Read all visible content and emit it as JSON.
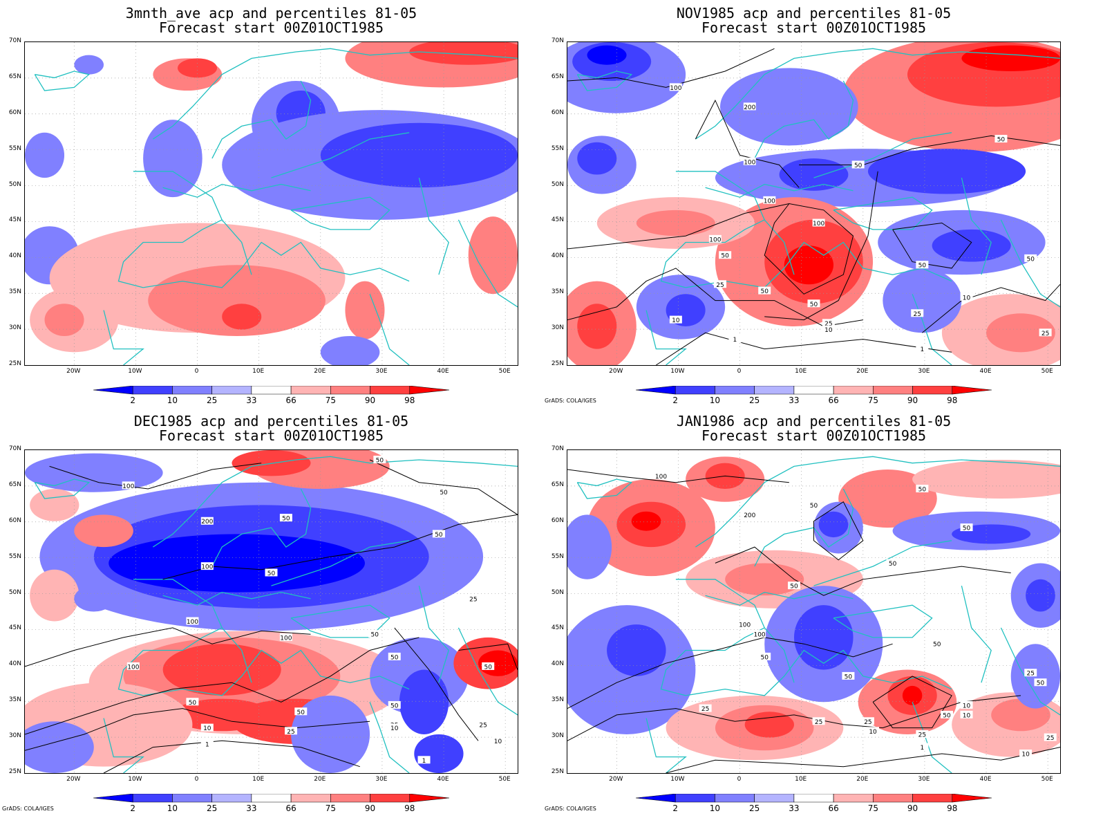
{
  "credit": "GrADS: COLA/IGES",
  "axes": {
    "lat_labels": [
      "70N",
      "65N",
      "60N",
      "55N",
      "50N",
      "45N",
      "40N",
      "35N",
      "30N",
      "25N"
    ],
    "lon_labels": [
      "20W",
      "10W",
      "0",
      "10E",
      "20E",
      "30E",
      "40E",
      "50E"
    ]
  },
  "colorbar": {
    "labels": [
      "2",
      "10",
      "25",
      "33",
      "66",
      "75",
      "90",
      "98"
    ],
    "colors": [
      "#0000ff",
      "#4040ff",
      "#8080ff",
      "#b4b4ff",
      "#ffffff",
      "#ffb4b4",
      "#ff8080",
      "#ff4040",
      "#ff0000"
    ]
  },
  "colors": {
    "coast": "#20c0c0",
    "contour": "#000000"
  },
  "panels": [
    {
      "title1": "3mnth_ave acp and percentiles 81-05",
      "title2": "Forecast start 00Z01OCT1985",
      "contour_labels": [],
      "show_credit": false
    },
    {
      "title1": "NOV1985 acp and percentiles 81-05",
      "title2": "Forecast start 00Z01OCT1985",
      "contour_labels": [
        "100",
        "200",
        "100",
        "50",
        "50",
        "50",
        "100",
        "100",
        "100",
        "50",
        "50",
        "25",
        "10",
        "50",
        "25",
        "10",
        "1",
        "10",
        "25",
        "25",
        "50",
        "1"
      ],
      "show_credit": true
    },
    {
      "title1": "DEC1985 acp and percentiles 81-05",
      "title2": "Forecast start 00Z01OCT1985",
      "contour_labels": [
        "100",
        "50",
        "200",
        "50",
        "50",
        "50",
        "100",
        "50",
        "25",
        "100",
        "100",
        "50",
        "50",
        "50",
        "100",
        "50",
        "25",
        "50",
        "10",
        "25",
        "1",
        "50",
        "25",
        "1",
        "10",
        "10"
      ],
      "show_credit": true
    },
    {
      "title1": "JAN1986 acp and percentiles 81-05",
      "title2": "Forecast start 00Z01OCT1985",
      "contour_labels": [
        "100",
        "50",
        "200",
        "50",
        "50",
        "50",
        "50",
        "50",
        "100",
        "25",
        "100",
        "50",
        "50",
        "25",
        "25",
        "10",
        "25",
        "10",
        "50",
        "25",
        "1",
        "10",
        "50",
        "25",
        "10"
      ],
      "show_credit": true
    }
  ]
}
